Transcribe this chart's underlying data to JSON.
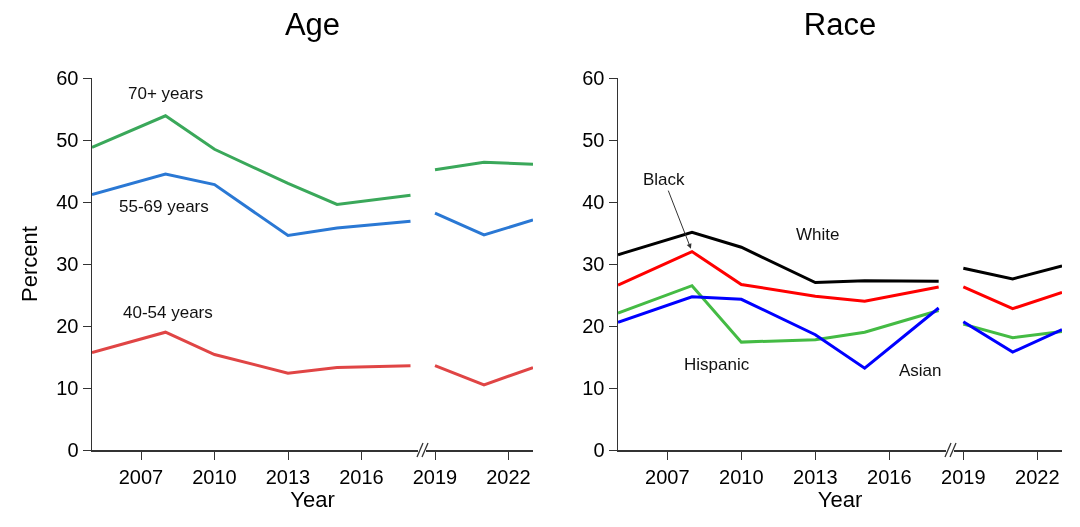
{
  "chart_data": [
    {
      "type": "line",
      "title": "Age",
      "xlabel": "Year",
      "ylabel": "Percent",
      "x": [
        2005,
        2008,
        2010,
        2013,
        2015,
        2018,
        2018.5,
        2019,
        2021,
        2023
      ],
      "series": [
        {
          "name": "70+ years",
          "color": "#3aa85a",
          "values": [
            48.8,
            53.9,
            48.5,
            43.0,
            39.6,
            41.1,
            null,
            45.2,
            46.4,
            46.1
          ]
        },
        {
          "name": "55-69 years",
          "color": "#2a78d4",
          "values": [
            41.2,
            44.5,
            42.8,
            34.6,
            35.8,
            36.9,
            null,
            38.2,
            34.7,
            37.1
          ]
        },
        {
          "name": "40-54 years",
          "color": "#e04545",
          "values": [
            15.7,
            19.0,
            15.4,
            12.4,
            13.3,
            13.6,
            null,
            13.6,
            10.5,
            13.3
          ]
        }
      ],
      "xlim": [
        2005,
        2023
      ],
      "xticks": [
        2007,
        2010,
        2013,
        2016,
        2019,
        2022
      ],
      "ylim": [
        0,
        60
      ],
      "yticks": [
        0,
        10,
        20,
        30,
        40,
        50,
        60
      ],
      "grid": false,
      "legend": false,
      "marker": "none",
      "line_style": "solid"
    },
    {
      "type": "line",
      "title": "Race",
      "xlabel": "Year",
      "x": [
        2005,
        2008,
        2010,
        2013,
        2015,
        2018,
        2018.5,
        2019,
        2021,
        2023
      ],
      "series": [
        {
          "name": "White",
          "color": "#000000",
          "values": [
            31.5,
            35.1,
            32.7,
            27.0,
            27.3,
            27.2,
            null,
            29.3,
            27.6,
            29.7
          ]
        },
        {
          "name": "Black",
          "color": "#ff0000",
          "values": [
            26.6,
            32.0,
            26.7,
            24.8,
            24.0,
            26.3,
            null,
            26.3,
            22.8,
            25.4
          ]
        },
        {
          "name": "Hispanic",
          "color": "#44bb44",
          "values": [
            22.1,
            26.5,
            17.4,
            17.8,
            19.0,
            22.5,
            null,
            20.3,
            18.1,
            19.1
          ]
        },
        {
          "name": "Asian",
          "color": "#0000ff",
          "values": [
            20.6,
            24.7,
            24.3,
            18.6,
            13.2,
            22.9,
            null,
            20.7,
            15.8,
            19.4
          ]
        }
      ],
      "xlim": [
        2005,
        2023
      ],
      "xticks": [
        2007,
        2010,
        2013,
        2016,
        2019,
        2022
      ],
      "ylim": [
        0,
        60
      ],
      "yticks": [
        0,
        10,
        20,
        30,
        40,
        50,
        60
      ],
      "grid": false,
      "legend": false,
      "marker": "none",
      "line_style": "solid"
    }
  ]
}
